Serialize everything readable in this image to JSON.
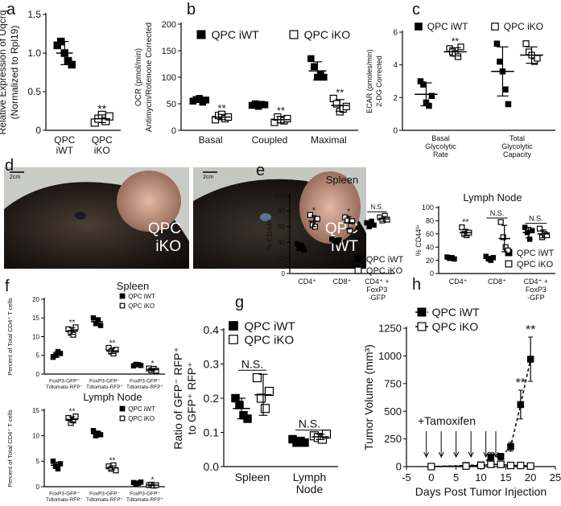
{
  "chart_data": [
    {
      "type": "dotplot",
      "panel": "a",
      "ylabel": [
        "Relative Expression of Uqcrq",
        "(Normalized to Rpl19)"
      ],
      "categories": [
        "QPC\niWT",
        "QPC\niKO"
      ],
      "ylim": [
        0,
        1.5
      ],
      "yticks": [
        0,
        0.5,
        {
          "value": 1,
          "label": "1.0"
        },
        1.5
      ],
      "series": [
        {
          "markers": [
            "filled",
            "open"
          ],
          "values": [
            1.0,
            0.15
          ],
          "errors": [
            0.15,
            0.05
          ],
          "points": [
            [
              1.1,
              1.15,
              1.0,
              0.9,
              0.85
            ],
            [
              0.1,
              0.15,
              0.2,
              0.12,
              0.18
            ]
          ],
          "value_annotations": [
            null,
            "**"
          ]
        }
      ]
    },
    {
      "type": "dotplot",
      "panel": "b",
      "ylabel": [
        "OCR (pmol/min)",
        "Antimycin/Rotenone Corrected"
      ],
      "categories": [
        "Basal",
        "Coupled",
        "Maximal"
      ],
      "ylim": [
        0,
        200
      ],
      "yticks": [
        0,
        50,
        100,
        150,
        200
      ],
      "series": [
        {
          "name": "QPC iWT",
          "marker": "filled",
          "values": [
            57,
            48,
            112
          ],
          "errors": [
            4,
            3,
            17
          ],
          "points": [
            [
              55,
              58,
              60,
              53,
              57
            ],
            [
              47,
              50,
              45,
              49,
              48
            ],
            [
              135,
              120,
              100,
              105,
              100
            ]
          ]
        },
        {
          "name": "QPC iKO",
          "marker": "open",
          "values": [
            25,
            20,
            47
          ],
          "errors": [
            5,
            6,
            11
          ],
          "points": [
            [
              20,
              28,
              30,
              22,
              25
            ],
            [
              15,
              25,
              20,
              18,
              22
            ],
            [
              60,
              50,
              35,
              40,
              45
            ]
          ],
          "value_annotations": [
            "**",
            "**",
            "**"
          ]
        }
      ]
    },
    {
      "type": "dotplot",
      "panel": "c",
      "ylabel": [
        "ECAR (pmoles/min)",
        "2-DG Corrected"
      ],
      "categories": [
        "Basal\nGlycolytic\nRate",
        "Total\nGlycolytic\nCapacity"
      ],
      "ylim": [
        0,
        6
      ],
      "yticks": [
        0,
        2,
        4,
        6
      ],
      "series": [
        {
          "name": "QPC iWT",
          "marker": "filled",
          "values": [
            2.2,
            3.6
          ],
          "errors": [
            0.7,
            1.5
          ],
          "points": [
            [
              3.0,
              2.8,
              1.7,
              1.5,
              2.1
            ],
            [
              5.3,
              4.2,
              3.6,
              2.5,
              1.6
            ]
          ]
        },
        {
          "name": "QPC iKO",
          "marker": "open",
          "values": [
            4.8,
            4.6
          ],
          "errors": [
            0.25,
            0.5
          ],
          "points": [
            [
              5.0,
              4.8,
              4.7,
              4.5,
              5.1
            ],
            [
              5.3,
              4.8,
              4.6,
              4.2,
              4.4
            ]
          ],
          "value_annotations": [
            "**",
            null
          ]
        }
      ]
    },
    {
      "type": "dotplot",
      "panel": "e",
      "title": "Spleen",
      "ylabel": [
        "% CD44ʰⁱ"
      ],
      "categories": [
        "CD4⁺",
        "CD8⁺",
        "CD4⁺ +\nFoxP3\n-GFP"
      ],
      "ylim": [
        0,
        100
      ],
      "yticks": [
        0,
        20,
        40,
        60,
        80,
        100
      ],
      "group_annotations": [
        null,
        null,
        "N.S."
      ],
      "series": [
        {
          "name": "QPC iWT",
          "marker": "filled",
          "values": [
            35,
            42,
            63
          ],
          "errors": [
            4,
            2,
            3
          ],
          "points": [
            [
              38,
              32,
              36,
              30
            ],
            [
              44,
              42,
              40,
              43
            ],
            [
              65,
              60,
              67,
              62
            ]
          ]
        },
        {
          "name": "QPC iKO",
          "marker": "open",
          "values": [
            67,
            65,
            70
          ],
          "errors": [
            7,
            8,
            3
          ],
          "points": [
            [
              75,
              62,
              60,
              70
            ],
            [
              72,
              68,
              55,
              67
            ],
            [
              72,
              68,
              74,
              69
            ]
          ],
          "value_annotations": [
            "*",
            "*",
            null
          ]
        }
      ]
    },
    {
      "type": "dotplot",
      "title": "Lymph Node",
      "ylabel": [
        "% CD44ʰⁱ"
      ],
      "categories": [
        "CD4⁺",
        "CD8⁺",
        "CD4⁺ +\nFoxP3\n-GFP"
      ],
      "ylim": [
        0,
        100
      ],
      "yticks": [
        0,
        20,
        40,
        60,
        80,
        100
      ],
      "group_annotations": [
        null,
        "N.S.",
        "N.S."
      ],
      "series": [
        {
          "name": "QPC iWT",
          "marker": "filled",
          "values": [
            23.5,
            23,
            62
          ],
          "errors": [
            1,
            3,
            8
          ],
          "points": [
            [
              25,
              23,
              24,
              22
            ],
            [
              26,
              22,
              20,
              24
            ],
            [
              70,
              62,
              52,
              65
            ]
          ]
        },
        {
          "name": "QPC iKO",
          "marker": "open",
          "values": [
            62,
            53,
            60
          ],
          "errors": [
            5,
            20,
            6
          ],
          "points": [
            [
              70,
              60,
              58,
              62
            ],
            [
              78,
              55,
              40,
              35
            ],
            [
              68,
              55,
              60,
              58
            ]
          ],
          "value_annotations": [
            "**",
            null,
            null
          ]
        }
      ]
    },
    {
      "type": "dotplot",
      "panel": "f",
      "title": "Spleen",
      "ylabel": [
        "Percent of Total CD4⁺ T cells"
      ],
      "categories": [
        "FoxP3-GFP⁺\nTdtomato-RFP⁻",
        "FoxP3-GFP⁻\nTdtomato-RFP⁺",
        "FoxP3-GFP⁺\nTdtomato-RFP⁺"
      ],
      "ylim": [
        0,
        20
      ],
      "yticks": [
        0,
        5,
        10,
        15,
        20
      ],
      "series": [
        {
          "name": "QPC iWT",
          "marker": "filled",
          "values": [
            5.2,
            14,
            2.4
          ],
          "errors": [
            0.7,
            0.8,
            0.2
          ],
          "points": [
            [
              4.5,
              5,
              6,
              5.5
            ],
            [
              15,
              13.5,
              14.5,
              13
            ],
            [
              2.2,
              2.6,
              2.5,
              2.3
            ]
          ]
        },
        {
          "name": "QPC iKO",
          "marker": "open",
          "values": [
            11.5,
            6.2,
            1.2
          ],
          "errors": [
            0.9,
            0.7,
            0.3
          ],
          "points": [
            [
              12,
              11,
              10.5,
              12.5
            ],
            [
              7,
              6,
              5.5,
              6.5
            ],
            [
              1.5,
              1.0,
              1.4,
              0.9
            ]
          ],
          "value_annotations": [
            "**",
            "**",
            "*"
          ]
        }
      ]
    },
    {
      "type": "dotplot",
      "title": "Lymph Node",
      "ylabel": [
        "Percent of Total CD4⁺ T cells"
      ],
      "categories": [
        "FoxP3-GFP⁺\nTdtomato-RFP⁻",
        "FoxP3-GFP⁻\nTdtomato-RFP⁺",
        "FoxP3-GFP⁺\nTdtomato-RFP⁺"
      ],
      "ylim": [
        0,
        15
      ],
      "yticks": [
        0,
        5,
        10,
        15
      ],
      "series": [
        {
          "name": "QPC iWT",
          "marker": "filled",
          "values": [
            4.2,
            10.4,
            0.75
          ],
          "errors": [
            0.6,
            0.4,
            0.15
          ],
          "points": [
            [
              5,
              4,
              3.5,
              4.5
            ],
            [
              11,
              10,
              10.5,
              10.2
            ],
            [
              0.8,
              0.6,
              0.7,
              0.9
            ]
          ]
        },
        {
          "name": "QPC iKO",
          "marker": "open",
          "values": [
            13.2,
            3.7,
            0.3
          ],
          "errors": [
            0.5,
            0.4,
            0.1
          ],
          "points": [
            [
              13.5,
              12.5,
              13,
              13.8
            ],
            [
              4,
              3.5,
              4.2,
              3.2
            ],
            [
              0.3,
              0.4,
              0.2,
              0.3
            ]
          ],
          "value_annotations": [
            "**",
            "**",
            "*"
          ]
        }
      ]
    },
    {
      "type": "dotplot",
      "panel": "g",
      "ylabel": [
        "Ratio of GFP⁻ RFP⁺",
        "to GFP⁺ RFP⁺"
      ],
      "categories": [
        "Spleen",
        "Lymph\nNode"
      ],
      "ylim": [
        0,
        0.4
      ],
      "yticks": [
        {
          "value": 0,
          "label": "0.0"
        },
        0.1,
        0.2,
        0.3,
        0.4
      ],
      "group_annotations": [
        "N.S.",
        "N.S."
      ],
      "series": [
        {
          "name": "QPC iWT",
          "marker": "filled",
          "values": [
            0.17,
            0.075
          ],
          "errors": [
            0.03,
            0.007
          ],
          "points": [
            [
              0.2,
              0.18,
              0.15,
              0.14
            ],
            [
              0.08,
              0.07,
              0.075,
              0.07
            ]
          ]
        },
        {
          "name": "QPC iKO",
          "marker": "open",
          "values": [
            0.21,
            0.087
          ],
          "errors": [
            0.06,
            0.008
          ],
          "points": [
            [
              0.26,
              0.2,
              0.17,
              0.22
            ],
            [
              0.09,
              0.085,
              0.08,
              0.095
            ]
          ]
        }
      ]
    },
    {
      "type": "line",
      "panel": "h",
      "ylabel": [
        "Tumor Volume (mm³)"
      ],
      "xlabel": "Days Post Tumor Injection",
      "annotation": "+Tamoxifen",
      "arrows_x": [
        -1,
        2,
        5,
        8,
        11,
        13
      ],
      "x": [
        0,
        7,
        10,
        12,
        14,
        16,
        18,
        20
      ],
      "xlim": [
        -5,
        25
      ],
      "xticks": [
        -5,
        0,
        5,
        10,
        15,
        20,
        25
      ],
      "ylim": [
        0,
        1250
      ],
      "yticks": [
        0,
        250,
        500,
        750,
        1000,
        1250
      ],
      "series": [
        {
          "name": "QPC iWT",
          "marker": "filled",
          "dashed": true,
          "values": [
            0,
            10,
            15,
            85,
            90,
            180,
            560,
            970
          ],
          "errors": [
            0,
            5,
            10,
            40,
            30,
            40,
            130,
            200
          ],
          "value_annotations": [
            null,
            null,
            null,
            null,
            null,
            null,
            "**",
            "**"
          ]
        },
        {
          "name": "QPC iKO",
          "marker": "open",
          "dashed": false,
          "values": [
            0,
            5,
            10,
            20,
            20,
            10,
            10,
            5
          ],
          "errors": [
            0,
            5,
            10,
            10,
            10,
            5,
            10,
            5
          ]
        }
      ]
    }
  ],
  "photos": {
    "panel": "d",
    "labels": [
      "QPC\niKO",
      "QPC\niWT"
    ],
    "scale_bars": [
      "2cm",
      "2cm"
    ]
  }
}
